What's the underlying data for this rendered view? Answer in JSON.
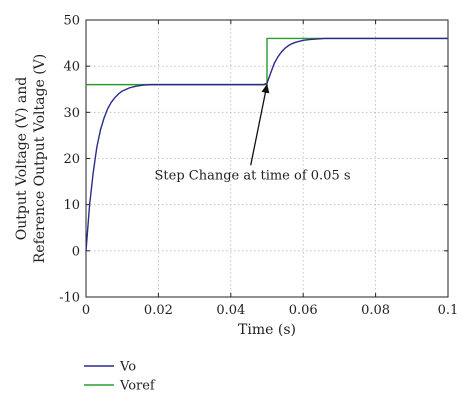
{
  "chart_data": {
    "type": "line",
    "xlabel": "Time (s)",
    "ylabel_lines": [
      "Output Voltage (V) and",
      "Reference Output Voltage (V)"
    ],
    "xlim": [
      0,
      0.1
    ],
    "ylim": [
      -10,
      50
    ],
    "xticks": [
      0,
      0.02,
      0.04,
      0.06,
      0.08,
      0.1
    ],
    "xtick_labels": [
      "0",
      "0.02",
      "0.04",
      "0.06",
      "0.08",
      "0.1"
    ],
    "yticks": [
      -10,
      0,
      10,
      20,
      30,
      40,
      50
    ],
    "ytick_labels": [
      "-10",
      "0",
      "10",
      "20",
      "30",
      "40",
      "50"
    ],
    "grid": true,
    "legend_position": "bottom-left",
    "series": [
      {
        "name": "Vo",
        "color": "#2b2b8c",
        "x": [
          0,
          0.001,
          0.002,
          0.003,
          0.004,
          0.005,
          0.006,
          0.007,
          0.008,
          0.009,
          0.01,
          0.012,
          0.014,
          0.016,
          0.018,
          0.02,
          0.025,
          0.03,
          0.035,
          0.04,
          0.045,
          0.049,
          0.05,
          0.051,
          0.052,
          0.053,
          0.054,
          0.055,
          0.056,
          0.057,
          0.058,
          0.06,
          0.062,
          0.064,
          0.066,
          0.07,
          0.075,
          0.08,
          0.085,
          0.09,
          0.095,
          0.1
        ],
        "y": [
          0,
          10,
          17,
          22.5,
          26.2,
          28.8,
          30.8,
          32.2,
          33.2,
          34.0,
          34.6,
          35.3,
          35.7,
          35.9,
          36.0,
          36.0,
          36.0,
          36.0,
          36.0,
          36.0,
          36.0,
          36.0,
          36.3,
          38.5,
          40.6,
          42.0,
          43.1,
          43.9,
          44.5,
          44.9,
          45.2,
          45.6,
          45.8,
          45.9,
          46.0,
          46.0,
          46.0,
          46.0,
          46.0,
          46.0,
          46.0,
          46.0
        ]
      },
      {
        "name": "Voref",
        "color": "#2e9a2e",
        "x": [
          0,
          0.05,
          0.05,
          0.1
        ],
        "y": [
          36,
          36,
          46,
          46
        ]
      }
    ],
    "annotation": {
      "text": "Step Change at time of 0.05 s",
      "target": [
        0.05,
        36.4
      ],
      "text_at": [
        0.046,
        15.5
      ]
    }
  }
}
